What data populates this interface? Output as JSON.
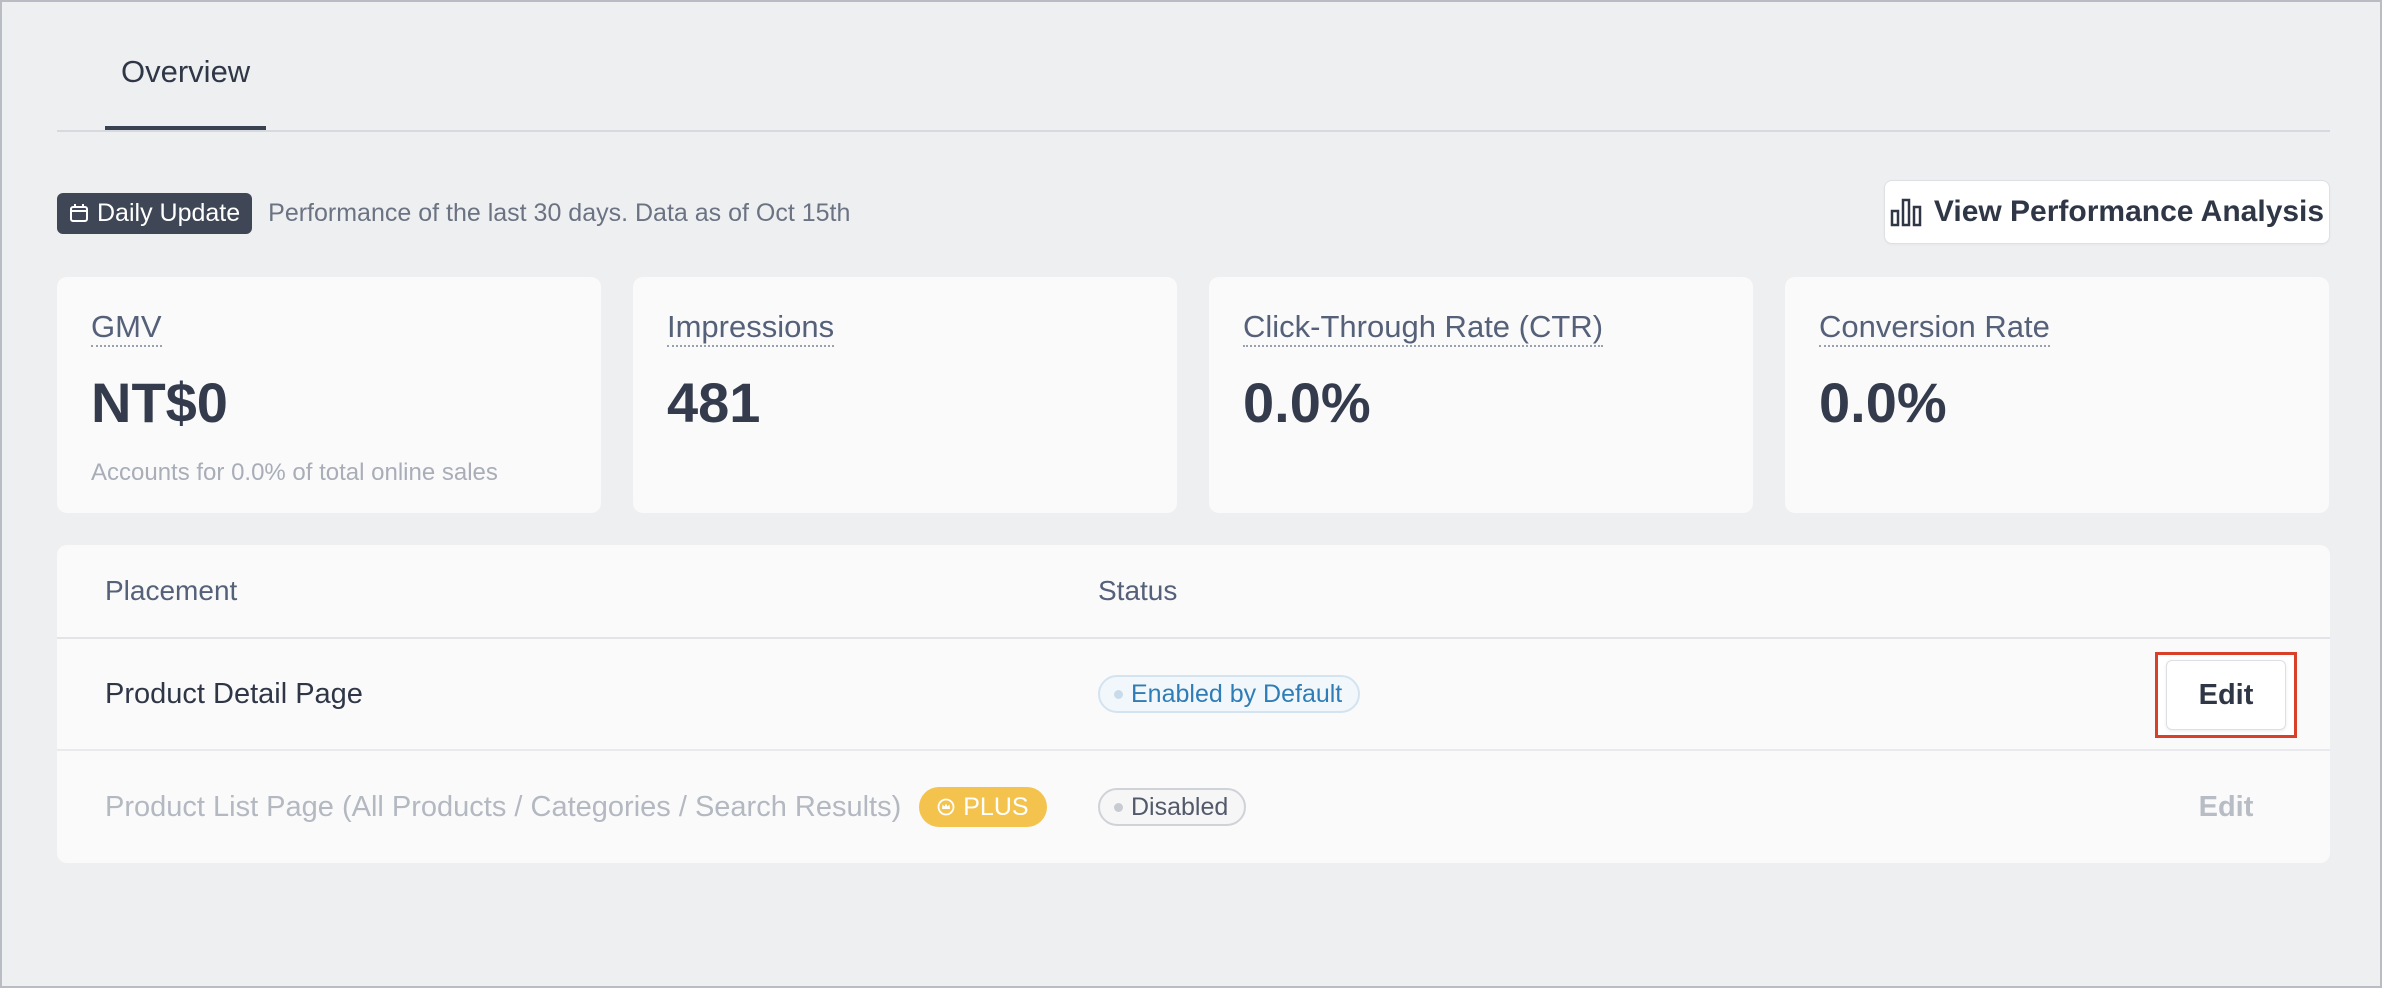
{
  "tabs": [
    {
      "label": "Overview",
      "active": true
    }
  ],
  "info": {
    "badge_label": "Daily Update",
    "description": "Performance of the last 30 days. Data as of Oct 15th",
    "analysis_button": "View Performance Analysis"
  },
  "stats": [
    {
      "title": "GMV",
      "value": "NT$0",
      "sub": "Accounts for 0.0% of total online sales"
    },
    {
      "title": "Impressions",
      "value": "481",
      "sub": ""
    },
    {
      "title": "Click-Through Rate (CTR)",
      "value": "0.0%",
      "sub": ""
    },
    {
      "title": "Conversion Rate",
      "value": "0.0%",
      "sub": ""
    }
  ],
  "table": {
    "headers": {
      "placement": "Placement",
      "status": "Status"
    },
    "rows": [
      {
        "placement": "Product Detail Page",
        "status": "Enabled by Default",
        "action": "Edit",
        "enabled": true
      },
      {
        "placement": "Product List Page (All Products / Categories / Search Results)",
        "badge": "PLUS",
        "status": "Disabled",
        "action": "Edit",
        "enabled": false
      }
    ]
  },
  "colors": {
    "accent_red": "#d9402a",
    "plus_yellow": "#f3c34d",
    "enabled_blue": "#2f7db6"
  }
}
